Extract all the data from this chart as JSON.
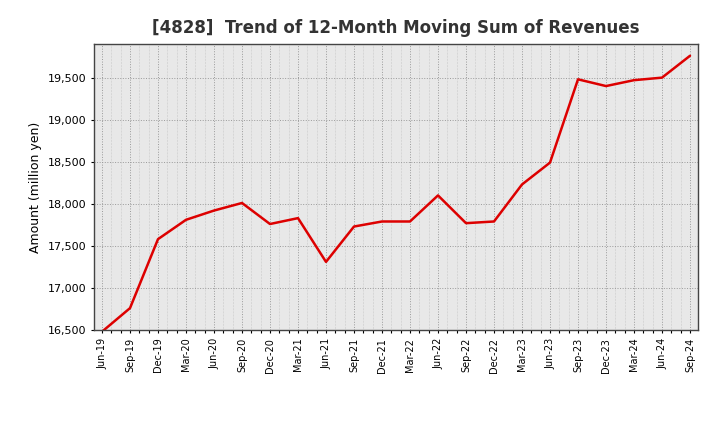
{
  "title": "[4828]  Trend of 12-Month Moving Sum of Revenues",
  "ylabel": "Amount (million yen)",
  "line_color": "#dd0000",
  "background_color": "#ffffff",
  "plot_bg_color": "#e8e8e8",
  "grid_color": "#999999",
  "ylim": [
    16500,
    19900
  ],
  "yticks": [
    16500,
    17000,
    17500,
    18000,
    18500,
    19000,
    19500
  ],
  "x_labels": [
    "Jun-19",
    "Sep-19",
    "Dec-19",
    "Mar-20",
    "Jun-20",
    "Sep-20",
    "Dec-20",
    "Mar-21",
    "Jun-21",
    "Sep-21",
    "Dec-21",
    "Mar-22",
    "Jun-22",
    "Sep-22",
    "Dec-22",
    "Mar-23",
    "Jun-23",
    "Sep-23",
    "Dec-23",
    "Mar-24",
    "Jun-24",
    "Sep-24"
  ],
  "values": [
    16480,
    16760,
    17580,
    17810,
    17920,
    18010,
    17760,
    17830,
    17310,
    17730,
    17790,
    17790,
    18100,
    17770,
    17790,
    18230,
    18490,
    19480,
    19400,
    19470,
    19500,
    19760
  ],
  "title_fontsize": 12,
  "ylabel_fontsize": 9,
  "tick_fontsize": 8,
  "xtick_fontsize": 7
}
